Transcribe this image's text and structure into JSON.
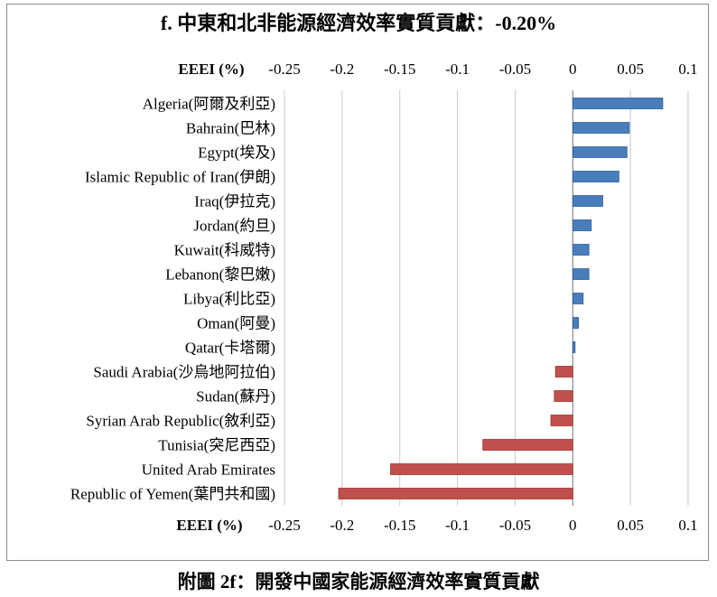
{
  "chart_data": {
    "type": "bar",
    "orientation": "horizontal",
    "title": "f. 中東和北非能源經濟效率實質貢獻：-0.20%",
    "xlabel": "EEEI (%)",
    "xlim": [
      -0.25,
      0.1
    ],
    "xticks": [
      "-0.25",
      "-0.2",
      "-0.15",
      "-0.1",
      "-0.05",
      "0",
      "0.05",
      "0.1"
    ],
    "tick_values": [
      -0.25,
      -0.2,
      -0.15,
      -0.1,
      -0.05,
      0,
      0.05,
      0.1
    ],
    "grid": true,
    "axis_labels_position": "top-and-bottom",
    "categories": [
      "Algeria(阿爾及利亞)",
      "Bahrain(巴林)",
      "Egypt(埃及)",
      "Islamic Republic of Iran(伊朗)",
      "Iraq(伊拉克)",
      "Jordan(約旦)",
      "Kuwait(科威特)",
      "Lebanon(黎巴嫩)",
      "Libya(利比亞)",
      "Oman(阿曼)",
      "Qatar(卡塔爾)",
      "Saudi Arabia(沙烏地阿拉伯)",
      "Sudan(蘇丹)",
      "Syrian Arab Republic(敘利亞)",
      "Tunisia(突尼西亞)",
      "United Arab Emirates",
      "Republic of Yemen(葉門共和國)"
    ],
    "values": [
      0.078,
      0.049,
      0.047,
      0.04,
      0.026,
      0.016,
      0.014,
      0.014,
      0.009,
      0.005,
      0.002,
      -0.015,
      -0.016,
      -0.019,
      -0.078,
      -0.158,
      -0.203
    ],
    "colors": {
      "positive": "#4a7ebb",
      "negative": "#c0504d",
      "positive_edge": "#2f5f99",
      "negative_edge": "#9c3733",
      "grid": "#c8c8c8",
      "axis": "#808080"
    }
  },
  "caption": "附圖 2f：開發中國家能源經濟效率實質貢獻"
}
